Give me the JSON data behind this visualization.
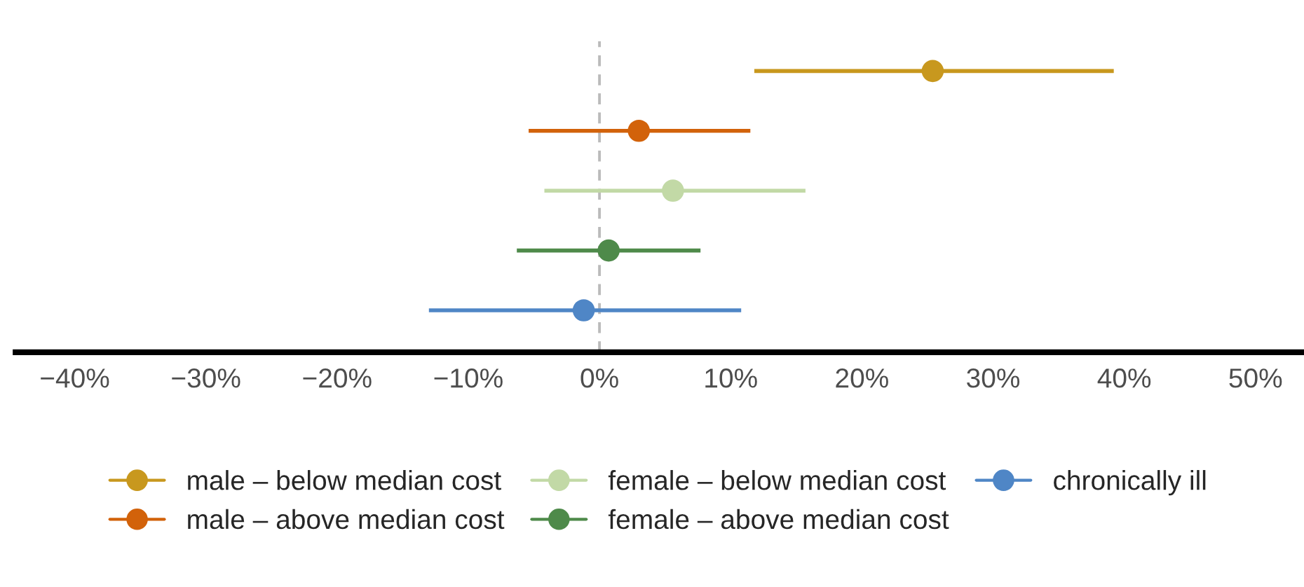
{
  "chart_data": {
    "type": "scatter",
    "orientation": "horizontal",
    "categories": [
      null,
      null,
      null,
      null,
      null
    ],
    "series": [
      {
        "name": "male – below median cost",
        "color": "#c8981e",
        "values": [
          25.4,
          null,
          null,
          null,
          null
        ],
        "errors": [
          [
            11.8,
            39.2
          ],
          null,
          null,
          null,
          null
        ]
      },
      {
        "name": "male – above median cost",
        "color": "#d2620a",
        "values": [
          null,
          3.0,
          null,
          null,
          null
        ],
        "errors": [
          null,
          [
            -5.4,
            11.5
          ],
          null,
          null,
          null
        ]
      },
      {
        "name": "female – below median cost",
        "color": "#c2d9a6",
        "values": [
          null,
          null,
          5.6,
          null,
          null
        ],
        "errors": [
          null,
          null,
          [
            -4.2,
            15.7
          ],
          null,
          null
        ]
      },
      {
        "name": "female – above median cost",
        "color": "#4e8a4a",
        "values": [
          null,
          null,
          null,
          0.7,
          null
        ],
        "errors": [
          null,
          null,
          null,
          [
            -6.3,
            7.7
          ],
          null
        ]
      },
      {
        "name": "chronically ill",
        "color": "#4f86c6",
        "values": [
          null,
          null,
          null,
          null,
          -1.2
        ],
        "errors": [
          null,
          null,
          null,
          null,
          [
            -13.0,
            10.8
          ]
        ]
      }
    ],
    "xlim": [
      -44.5,
      53.5
    ],
    "xticks": [
      {
        "value": -40,
        "label": "−40%"
      },
      {
        "value": -30,
        "label": "−30%"
      },
      {
        "value": -20,
        "label": "−20%"
      },
      {
        "value": -10,
        "label": "−10%"
      },
      {
        "value": 0,
        "label": "0%"
      },
      {
        "value": 10,
        "label": "10%"
      },
      {
        "value": 20,
        "label": "20%"
      },
      {
        "value": 30,
        "label": "30%"
      },
      {
        "value": 40,
        "label": "40%"
      },
      {
        "value": 50,
        "label": "50%"
      }
    ],
    "ref_lines": [
      {
        "axis": "x",
        "value": 0,
        "color": "#bbbbbb",
        "line_style": "dashed"
      }
    ],
    "tick_labels": "x",
    "grid": false,
    "legend": "bottom",
    "marker": "circle"
  }
}
